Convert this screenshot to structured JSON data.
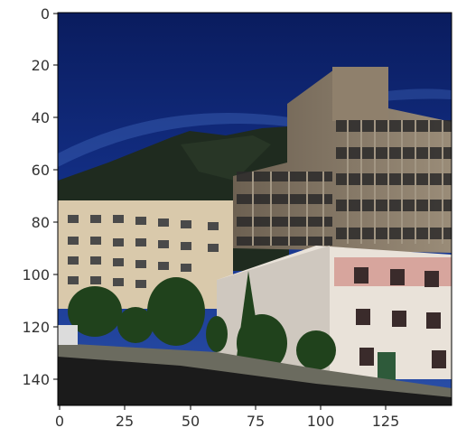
{
  "figure": {
    "image_content": "photo-buildings-mountain-sky",
    "colors": {
      "sky_top": "#0b1f63",
      "sky_mid": "#1a3a8f",
      "mountain": "#1e2a1e",
      "tall_building": "#8b7d6b",
      "left_building": "#d8c8aa",
      "white_building": "#ece6de",
      "pink_band": "#d8a8a0",
      "trees": "#234a1e",
      "road": "#1b1b1b"
    }
  },
  "axes": {
    "x_ticks": [
      "0",
      "25",
      "50",
      "75",
      "100",
      "125"
    ],
    "y_ticks": [
      "0",
      "20",
      "40",
      "60",
      "80",
      "100",
      "120",
      "140"
    ],
    "xlim": [
      0,
      150
    ],
    "ylim": [
      0,
      150
    ]
  }
}
